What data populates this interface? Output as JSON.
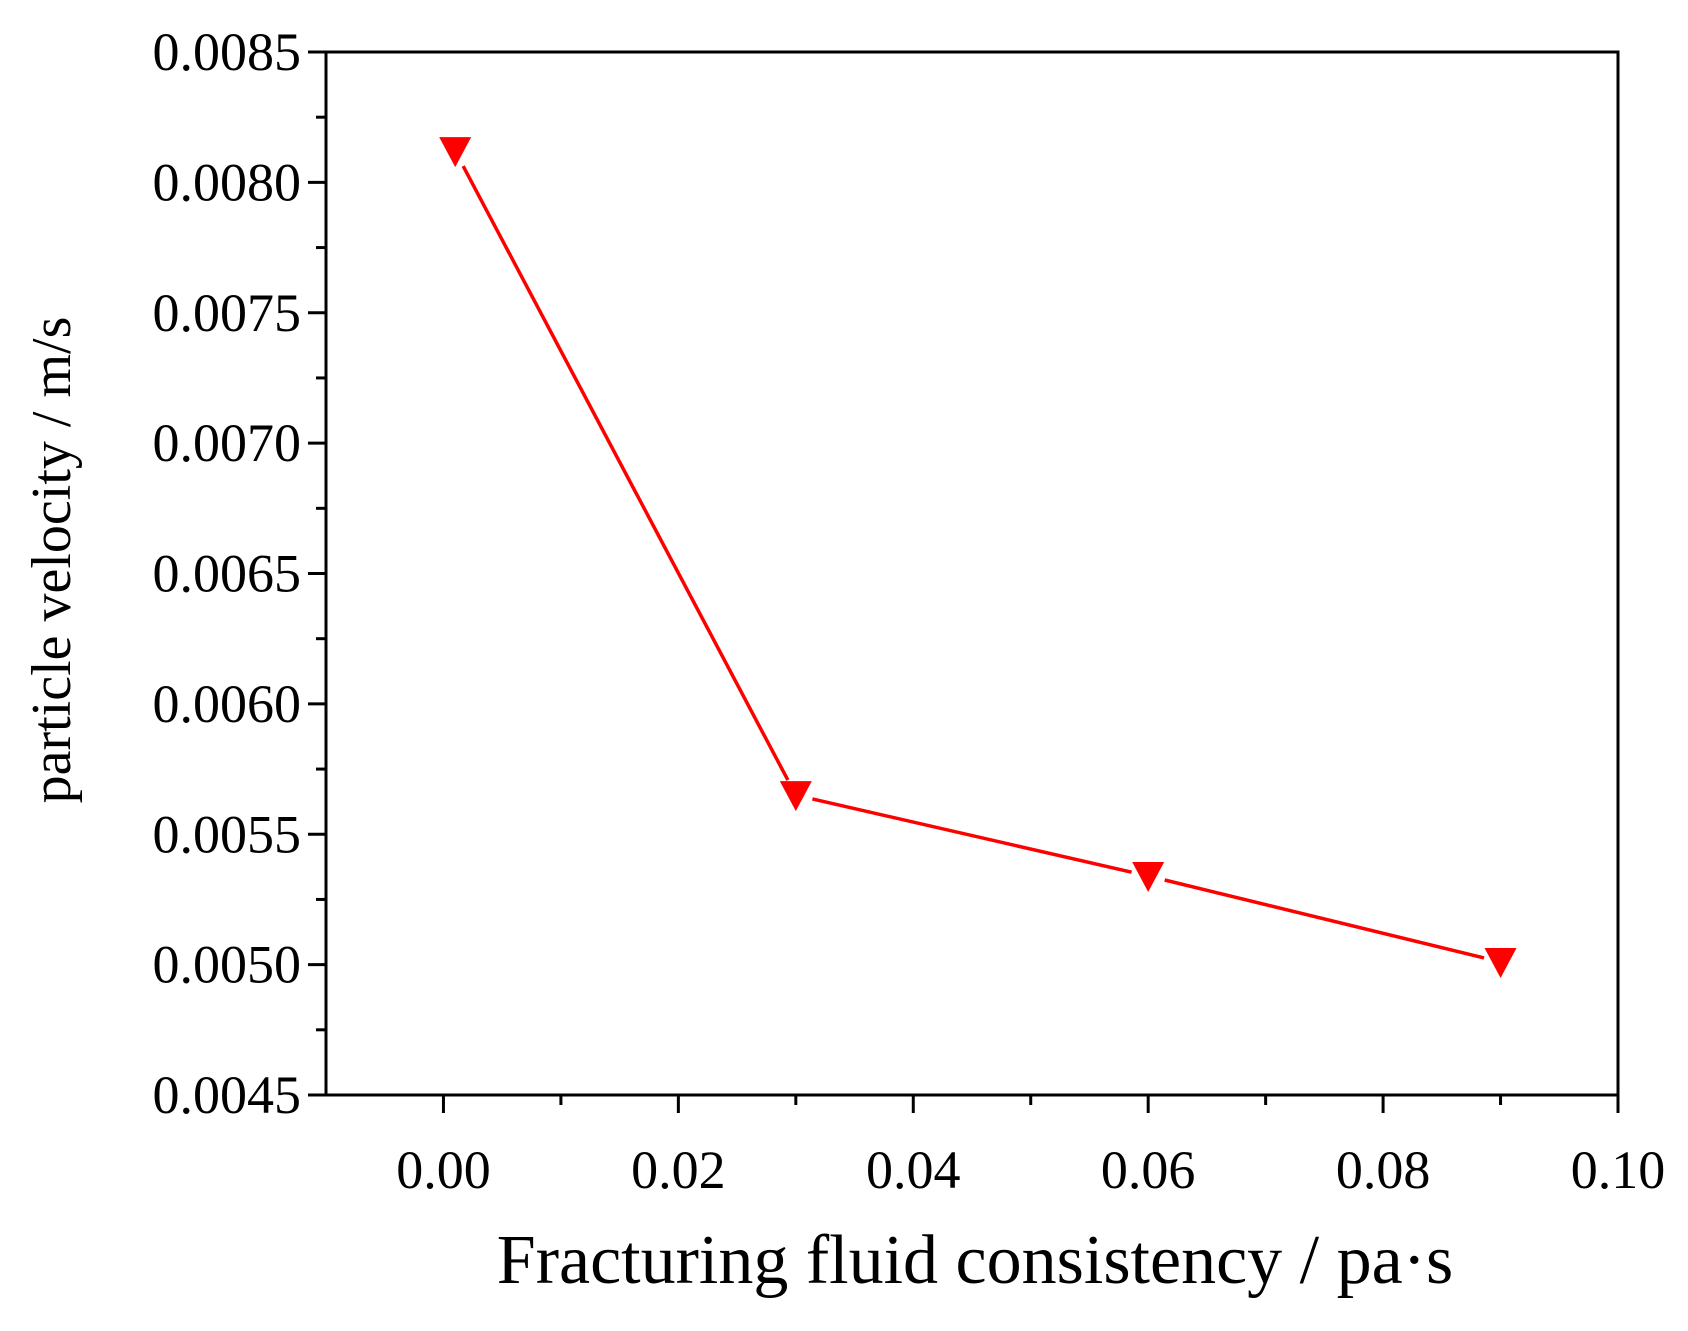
{
  "chart_data": {
    "type": "line",
    "xlabel": "Fracturing fluid consistency / pa·s",
    "ylabel": "particle velocity / m/s",
    "xlim": [
      -0.01,
      0.1
    ],
    "ylim": [
      0.0045,
      0.0085
    ],
    "x_ticks": [
      "0.00",
      "0.02",
      "0.04",
      "0.06",
      "0.08",
      "0.10"
    ],
    "y_ticks": [
      "0.0045",
      "0.0050",
      "0.0055",
      "0.0060",
      "0.0065",
      "0.0070",
      "0.0075",
      "0.0080",
      "0.0085"
    ],
    "grid": false,
    "marker": "down-triangle",
    "series": [
      {
        "color": "#ff0000",
        "x": [
          0.001,
          0.03,
          0.06,
          0.09
        ],
        "y": [
          0.00812,
          0.00565,
          0.00534,
          0.00501
        ]
      }
    ]
  }
}
